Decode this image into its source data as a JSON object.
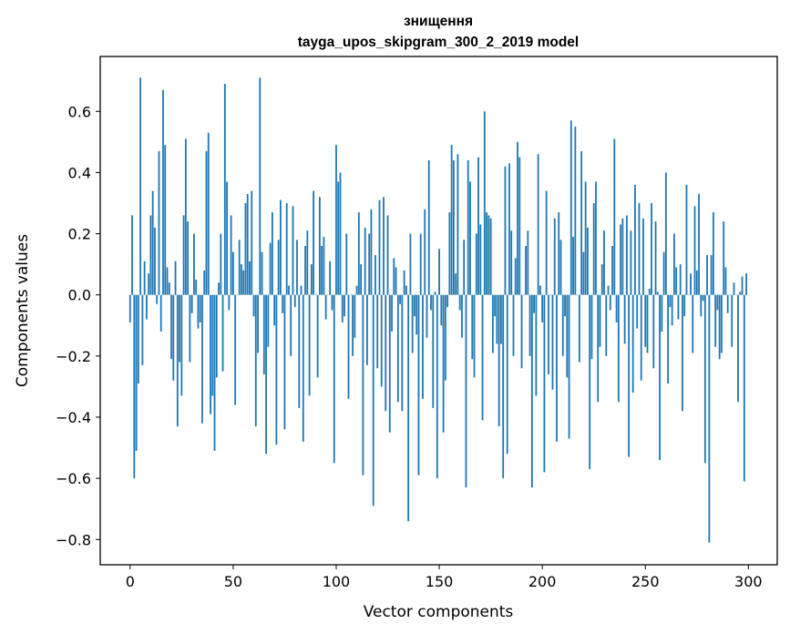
{
  "chart_data": {
    "type": "bar",
    "title": "знищення",
    "subtitle": "tayga_upos_skipgram_300_2_2019 model",
    "xlabel": "Vector components",
    "ylabel": "Components values",
    "xlim": [
      -14.5,
      314
    ],
    "ylim": [
      -0.8826,
      0.7795
    ],
    "xticks": [
      0,
      50,
      100,
      150,
      200,
      250,
      300
    ],
    "xtick_labels": [
      "0",
      "50",
      "100",
      "150",
      "200",
      "250",
      "300"
    ],
    "yticks": [
      -0.8,
      -0.6,
      -0.4,
      -0.2,
      0.0,
      0.2,
      0.4,
      0.6
    ],
    "ytick_labels": [
      "−0.8",
      "−0.6",
      "−0.4",
      "−0.2",
      "0.0",
      "0.2",
      "0.4",
      "0.6"
    ],
    "grid": false,
    "bar_color": "#1f77b4",
    "x": [
      0,
      1,
      2,
      3,
      4,
      5,
      6,
      7,
      8,
      9,
      10,
      11,
      12,
      13,
      14,
      15,
      16,
      17,
      18,
      19,
      20,
      21,
      22,
      23,
      24,
      25,
      26,
      27,
      28,
      29,
      30,
      31,
      32,
      33,
      34,
      35,
      36,
      37,
      38,
      39,
      40,
      41,
      42,
      43,
      44,
      45,
      46,
      47,
      48,
      49,
      50,
      51,
      52,
      53,
      54,
      55,
      56,
      57,
      58,
      59,
      60,
      61,
      62,
      63,
      64,
      65,
      66,
      67,
      68,
      69,
      70,
      71,
      72,
      73,
      74,
      75,
      76,
      77,
      78,
      79,
      80,
      81,
      82,
      83,
      84,
      85,
      86,
      87,
      88,
      89,
      90,
      91,
      92,
      93,
      94,
      95,
      96,
      97,
      98,
      99,
      100,
      101,
      102,
      103,
      104,
      105,
      106,
      107,
      108,
      109,
      110,
      111,
      112,
      113,
      114,
      115,
      116,
      117,
      118,
      119,
      120,
      121,
      122,
      123,
      124,
      125,
      126,
      127,
      128,
      129,
      130,
      131,
      132,
      133,
      134,
      135,
      136,
      137,
      138,
      139,
      140,
      141,
      142,
      143,
      144,
      145,
      146,
      147,
      148,
      149,
      150,
      151,
      152,
      153,
      154,
      155,
      156,
      157,
      158,
      159,
      160,
      161,
      162,
      163,
      164,
      165,
      166,
      167,
      168,
      169,
      170,
      171,
      172,
      173,
      174,
      175,
      176,
      177,
      178,
      179,
      180,
      181,
      182,
      183,
      184,
      185,
      186,
      187,
      188,
      189,
      190,
      191,
      192,
      193,
      194,
      195,
      196,
      197,
      198,
      199,
      200,
      201,
      202,
      203,
      204,
      205,
      206,
      207,
      208,
      209,
      210,
      211,
      212,
      213,
      214,
      215,
      216,
      217,
      218,
      219,
      220,
      221,
      222,
      223,
      224,
      225,
      226,
      227,
      228,
      229,
      230,
      231,
      232,
      233,
      234,
      235,
      236,
      237,
      238,
      239,
      240,
      241,
      242,
      243,
      244,
      245,
      246,
      247,
      248,
      249,
      250,
      251,
      252,
      253,
      254,
      255,
      256,
      257,
      258,
      259,
      260,
      261,
      262,
      263,
      264,
      265,
      266,
      267,
      268,
      269,
      270,
      271,
      272,
      273,
      274,
      275,
      276,
      277,
      278,
      279,
      280,
      281,
      282,
      283,
      284,
      285,
      286,
      287,
      288,
      289,
      290,
      291,
      292,
      293,
      294,
      295,
      296,
      297,
      298,
      299
    ],
    "values": [
      -0.09,
      0.26,
      -0.6,
      -0.51,
      -0.29,
      0.71,
      -0.23,
      0.11,
      -0.08,
      0.07,
      0.26,
      0.34,
      0.22,
      -0.03,
      0.47,
      -0.12,
      0.67,
      0.49,
      0.09,
      0.04,
      -0.21,
      -0.28,
      0.11,
      -0.43,
      -0.22,
      -0.33,
      0.26,
      0.51,
      0.24,
      -0.22,
      -0.06,
      0.2,
      0.05,
      -0.11,
      -0.09,
      -0.42,
      0.08,
      0.47,
      0.53,
      -0.39,
      -0.33,
      -0.51,
      -0.27,
      0.04,
      0.2,
      -0.25,
      0.69,
      0.37,
      -0.05,
      0.26,
      0.14,
      -0.36,
      0.0,
      0.18,
      0.1,
      0.08,
      0.3,
      0.33,
      0.11,
      0.34,
      -0.07,
      -0.43,
      -0.19,
      0.71,
      0.14,
      -0.26,
      -0.52,
      -0.17,
      0.17,
      0.27,
      -0.1,
      -0.49,
      0.18,
      0.31,
      -0.06,
      -0.44,
      0.3,
      0.03,
      -0.2,
      0.29,
      -0.04,
      0.18,
      -0.37,
      0.03,
      -0.48,
      0.16,
      0.21,
      -0.33,
      0.1,
      0.34,
      0.0,
      -0.27,
      0.32,
      0.16,
      0.19,
      -0.08,
      0.0,
      0.11,
      -0.05,
      -0.55,
      0.49,
      0.37,
      0.4,
      -0.09,
      -0.07,
      0.2,
      -0.34,
      0.0,
      -0.2,
      -0.14,
      0.03,
      0.27,
      0.1,
      -0.59,
      0.22,
      -0.23,
      0.2,
      0.28,
      -0.69,
      0.13,
      -0.24,
      0.31,
      -0.3,
      0.32,
      -0.38,
      0.26,
      -0.45,
      -0.12,
      0.12,
      0.09,
      -0.35,
      -0.03,
      -0.38,
      0.08,
      0.03,
      -0.74,
      0.2,
      -0.19,
      -0.07,
      -0.13,
      -0.59,
      0.2,
      -0.34,
      0.28,
      -0.14,
      0.44,
      -0.05,
      -0.37,
      0.01,
      -0.6,
      0.15,
      -0.1,
      -0.45,
      -0.28,
      -0.04,
      0.27,
      0.49,
      0.44,
      0.07,
      0.46,
      -0.05,
      -0.14,
      0.18,
      -0.63,
      0.44,
      0.37,
      -0.21,
      -0.27,
      0.2,
      0.45,
      0.23,
      -0.41,
      0.6,
      0.27,
      0.26,
      0.25,
      -0.19,
      -0.07,
      -0.16,
      -0.43,
      -0.16,
      -0.6,
      0.42,
      -0.52,
      0.43,
      0.21,
      -0.2,
      0.12,
      0.5,
      0.45,
      -0.24,
      0.0,
      0.16,
      0.21,
      -0.2,
      -0.63,
      -0.06,
      -0.33,
      0.46,
      0.03,
      -0.09,
      -0.58,
      0.34,
      -0.26,
      0.0,
      -0.31,
      0.25,
      -0.48,
      0.27,
      0.18,
      -0.2,
      -0.07,
      -0.27,
      -0.47,
      0.57,
      0.19,
      0.55,
      0.0,
      -0.22,
      0.47,
      0.14,
      0.37,
      0.22,
      -0.57,
      -0.21,
      0.3,
      0.37,
      -0.35,
      -0.17,
      0.1,
      0.21,
      -0.2,
      0.03,
      -0.05,
      0.16,
      0.51,
      -0.09,
      -0.35,
      0.23,
      0.25,
      -0.16,
      0.26,
      -0.53,
      0.21,
      -0.32,
      0.36,
      -0.11,
      0.3,
      -0.28,
      0.25,
      -0.17,
      -0.19,
      0.02,
      0.3,
      -0.24,
      0.24,
      0.01,
      -0.54,
      -0.12,
      0.14,
      0.4,
      -0.29,
      -0.04,
      -0.1,
      0.2,
      0.09,
      -0.08,
      0.1,
      -0.38,
      -0.07,
      0.36,
      0.0,
      0.07,
      -0.19,
      0.29,
      0.08,
      0.33,
      -0.07,
      -0.02,
      -0.55,
      0.13,
      -0.81,
      0.13,
      0.27,
      -0.17,
      -0.05,
      -0.21,
      -0.19,
      0.24,
      0.09,
      -0.06,
      0.0,
      -0.17,
      0.04,
      0.0,
      -0.35,
      0.01,
      0.06,
      -0.61,
      0.07
    ]
  }
}
